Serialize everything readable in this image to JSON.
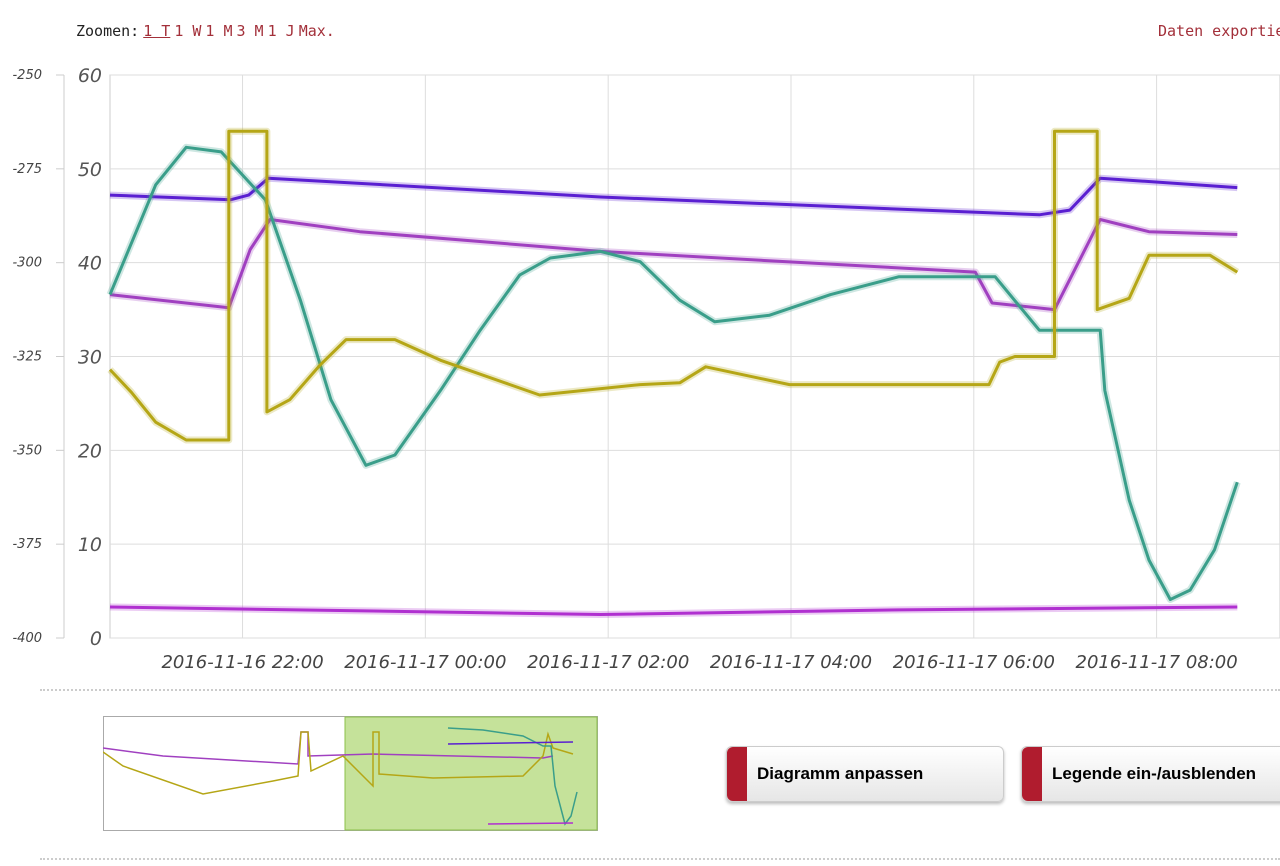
{
  "toolbar": {
    "zoom_label": "Zoomen:",
    "zoom_options": [
      "1 T",
      "1 W",
      "1 M",
      "3 M",
      "1 J",
      "Max."
    ],
    "export": "Daten exportieren"
  },
  "chart_data": {
    "type": "line",
    "xlim": [
      "2016-11-16 20:33",
      "2016-11-17 09:21"
    ],
    "xticks": [
      "2016-11-16 22:00",
      "2016-11-17 00:00",
      "2016-11-17 02:00",
      "2016-11-17 04:00",
      "2016-11-17 06:00",
      "2016-11-17 08:00"
    ],
    "ylim": [
      0,
      60
    ],
    "yticks": [
      0,
      10,
      20,
      30,
      40,
      50,
      60
    ],
    "y2lim": [
      -400,
      -250
    ],
    "y2ticks": [
      -400,
      -375,
      -350,
      -325,
      -300,
      -275,
      -250
    ],
    "grid": true,
    "series": [
      {
        "color": "#5a1fd1",
        "x": [
          "2016-11-16 20:33",
          "2016-11-16 21:52",
          "2016-11-16 22:04",
          "2016-11-16 22:17",
          "2016-11-17 01:55",
          "2016-11-17 06:43",
          "2016-11-17 07:03",
          "2016-11-17 07:23",
          "2016-11-17 08:53"
        ],
        "values": [
          47.2,
          46.7,
          47.2,
          49,
          47,
          45.1,
          45.6,
          49,
          48
        ]
      },
      {
        "color": "#a040c0",
        "x": [
          "2016-11-16 20:33",
          "2016-11-16 21:51",
          "2016-11-16 22:05",
          "2016-11-16 22:18",
          "2016-11-16 23:17",
          "2016-11-17 01:55",
          "2016-11-17 06:01",
          "2016-11-17 06:12",
          "2016-11-17 06:53",
          "2016-11-17 07:23",
          "2016-11-17 07:55",
          "2016-11-17 08:53"
        ],
        "values": [
          36.6,
          35.2,
          41.4,
          44.6,
          43.3,
          41.2,
          39,
          35.7,
          35,
          44.6,
          43.3,
          43
        ]
      },
      {
        "color": "#3a9e8a",
        "x": [
          "2016-11-16 20:33",
          "2016-11-16 21:03",
          "2016-11-16 21:23",
          "2016-11-16 21:46",
          "2016-11-16 22:15",
          "2016-11-16 22:38",
          "2016-11-16 22:58",
          "2016-11-16 23:21",
          "2016-11-16 23:40",
          "2016-11-17 00:10",
          "2016-11-17 00:36",
          "2016-11-17 01:02",
          "2016-11-17 01:22",
          "2016-11-17 01:55",
          "2016-11-17 02:21",
          "2016-11-17 02:47",
          "2016-11-17 03:10",
          "2016-11-17 03:46",
          "2016-11-17 04:26",
          "2016-11-17 05:11",
          "2016-11-17 06:14",
          "2016-11-17 06:43",
          "2016-11-17 07:23",
          "2016-11-17 07:26",
          "2016-11-17 07:42",
          "2016-11-17 07:55",
          "2016-11-17 08:09",
          "2016-11-17 08:22",
          "2016-11-17 08:38",
          "2016-11-17 08:53"
        ],
        "values": [
          36.6,
          48.3,
          52.3,
          51.8,
          46.7,
          36,
          25.4,
          18.4,
          19.5,
          26.4,
          32.8,
          38.7,
          40.5,
          41.2,
          40.1,
          36,
          33.7,
          34.4,
          36.6,
          38.5,
          38.5,
          32.8,
          32.8,
          26.4,
          14.7,
          8.3,
          4.1,
          5.1,
          9.4,
          16.6
        ]
      },
      {
        "color": "#b5a616",
        "x": [
          "2016-11-16 20:33",
          "2016-11-16 20:47",
          "2016-11-16 21:03",
          "2016-11-16 21:23",
          "2016-11-16 21:51",
          "2016-11-16 21:51",
          "2016-11-16 22:16",
          "2016-11-16 22:16",
          "2016-11-16 22:31",
          "2016-11-16 22:51",
          "2016-11-16 23:08",
          "2016-11-16 23:40",
          "2016-11-17 00:10",
          "2016-11-17 01:15",
          "2016-11-17 02:21",
          "2016-11-17 02:47",
          "2016-11-17 03:04",
          "2016-11-17 03:59",
          "2016-11-17 06:10",
          "2016-11-17 06:17",
          "2016-11-17 06:27",
          "2016-11-17 06:53",
          "2016-11-17 06:53",
          "2016-11-17 07:21",
          "2016-11-17 07:21",
          "2016-11-17 07:42",
          "2016-11-17 07:55",
          "2016-11-17 08:35",
          "2016-11-17 08:53"
        ],
        "values": [
          28.6,
          26.2,
          23,
          21.1,
          21.1,
          54,
          54,
          24.1,
          25.4,
          29.1,
          31.8,
          31.8,
          29.6,
          25.9,
          27,
          27.2,
          28.9,
          27,
          27,
          29.4,
          30,
          30,
          54,
          54,
          35,
          36.2,
          40.8,
          40.8,
          39
        ]
      },
      {
        "color": "#b030d0",
        "x": [
          "2016-11-16 20:33",
          "2016-11-17 01:55",
          "2016-11-17 05:11",
          "2016-11-17 08:53"
        ],
        "values": [
          3.3,
          2.5,
          3,
          3.3
        ]
      }
    ]
  },
  "buttons": [
    "Diagramm anpassen",
    "Legende ein-/ausblenden"
  ]
}
